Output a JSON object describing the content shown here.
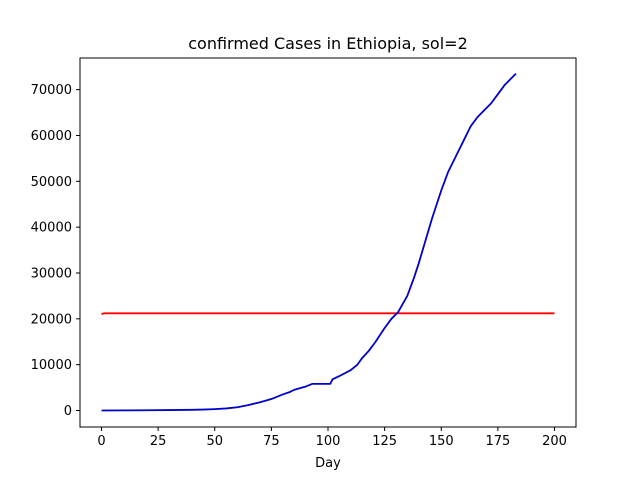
{
  "chart_data": {
    "type": "line",
    "title": "confirmed Cases in Ethiopia, sol=2",
    "xlabel": "Day",
    "ylabel": "",
    "xlim": [
      -9.5,
      209.5
    ],
    "ylim": [
      -3600,
      76900
    ],
    "xticks": [
      0,
      25,
      50,
      75,
      100,
      125,
      150,
      175,
      200
    ],
    "yticks": [
      0,
      10000,
      20000,
      30000,
      40000,
      50000,
      60000,
      70000
    ],
    "grid": false,
    "series": [
      {
        "color": "#ff0000",
        "x": [
          0,
          1,
          2,
          200
        ],
        "y": [
          21000,
          21200,
          21200,
          21200
        ]
      },
      {
        "color": "#0000cc",
        "x": [
          0,
          10,
          20,
          30,
          40,
          45,
          50,
          55,
          60,
          65,
          70,
          75,
          80,
          83,
          85,
          90,
          93,
          96,
          101,
          102,
          105,
          110,
          113,
          115,
          118,
          121,
          125,
          128,
          131,
          135,
          138,
          140,
          143,
          146,
          150,
          153,
          156,
          160,
          163,
          166,
          169,
          172,
          175,
          178,
          181,
          183
        ],
        "y": [
          0,
          20,
          50,
          100,
          150,
          200,
          300,
          450,
          700,
          1200,
          1800,
          2500,
          3500,
          4000,
          4500,
          5200,
          5800,
          5800,
          5800,
          6800,
          7500,
          8800,
          10000,
          11400,
          13000,
          15000,
          18000,
          20000,
          21500,
          25000,
          29000,
          32000,
          37000,
          42000,
          48000,
          52000,
          55000,
          59000,
          62000,
          64000,
          65500,
          67000,
          69000,
          71000,
          72500,
          73500
        ]
      }
    ]
  }
}
